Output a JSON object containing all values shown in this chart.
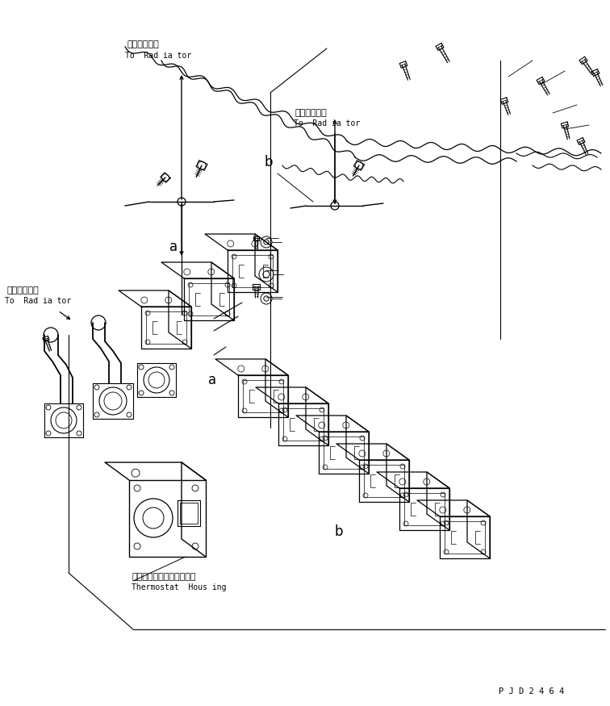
{
  "bg_color": "#ffffff",
  "line_color": "#000000",
  "fig_width": 7.56,
  "fig_height": 8.75,
  "dpi": 100,
  "part_id": "P J D 2 4 6 4",
  "labels": {
    "rad1_jp": "ラジェータへ",
    "rad1_en": "To  Rad ia tor",
    "rad2_jp": "ラジェータへ",
    "rad2_en": "To  Rad ia tor",
    "rad3_jp": "ラジェータへ",
    "rad3_en": "To  Rad ia tor",
    "thermo_jp": "サーモスタットハウジング",
    "thermo_en": "Thermostat  Hous ing",
    "a": "a",
    "b": "b"
  }
}
